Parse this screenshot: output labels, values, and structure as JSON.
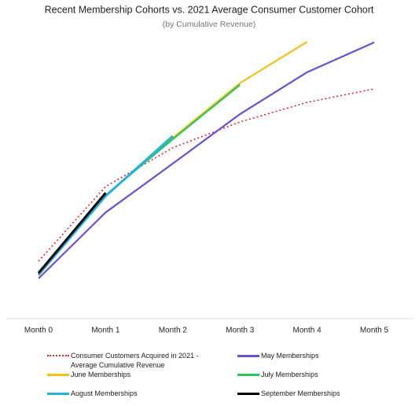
{
  "chart_data": {
    "type": "line",
    "title": "Recent Membership Cohorts vs. 2021 Average Consumer Customer Cohort",
    "subtitle": "(by Cumulative Revenue)",
    "categories": [
      "Month 0",
      "Month 1",
      "Month 2",
      "Month 3",
      "Month 4",
      "Month 5"
    ],
    "ylim": [
      0,
      100
    ],
    "series": [
      {
        "name": "Consumer Customers Acquired in 2021 - Average Cumulative Revenue",
        "color": "#e8262a",
        "dash": true,
        "values": [
          20,
          46,
          59.5,
          68.5,
          75.3,
          80
        ]
      },
      {
        "name": "May Memberships",
        "color": "#6a4fd6",
        "values": [
          14,
          37,
          54,
          71.2,
          85.8,
          96.2
        ]
      },
      {
        "name": "June Memberships",
        "color": "#f5c016",
        "values": [
          15,
          43,
          63,
          82,
          96.4,
          null
        ]
      },
      {
        "name": "July Memberships",
        "color": "#2ec45a",
        "values": [
          15.3,
          43,
          62.5,
          81.4,
          null,
          null
        ]
      },
      {
        "name": "August Memberships",
        "color": "#22b4dc",
        "values": [
          15.3,
          42.7,
          63.6,
          null,
          null,
          null
        ]
      },
      {
        "name": "September Memberships",
        "color": "#000000",
        "values": [
          15.9,
          43.8,
          null,
          null,
          null,
          null
        ]
      }
    ]
  }
}
